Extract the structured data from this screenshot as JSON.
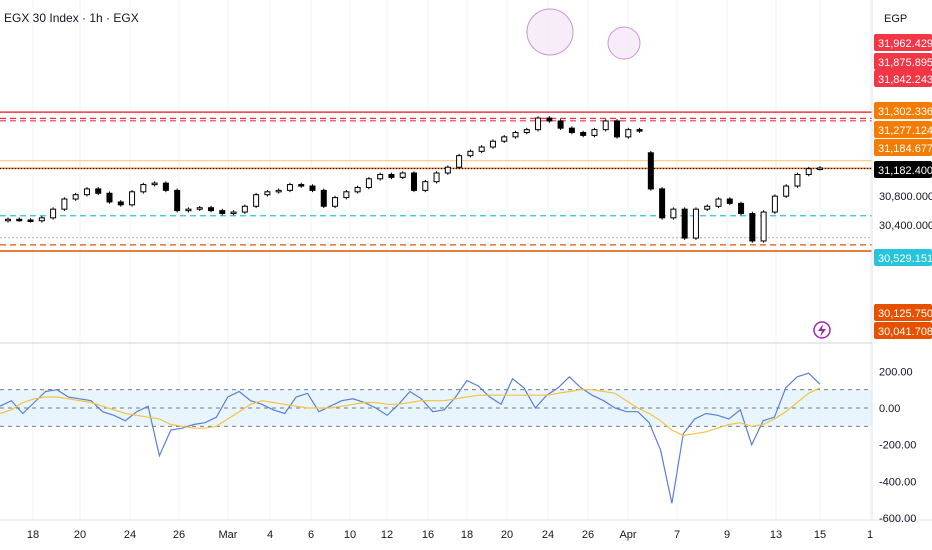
{
  "header": {
    "title": "EGX 30 Index · 1h · EGX"
  },
  "currency": "EGP",
  "chart_data": [
    {
      "type": "candlestick",
      "title": "EGX 30 Index · 1h · EGX",
      "x_ticks": [
        "18",
        "20",
        "24",
        "26",
        "Mar",
        "4",
        "6",
        "10",
        "12",
        "16",
        "18",
        "20",
        "24",
        "26",
        "Apr",
        "7",
        "9",
        "13",
        "15",
        "1"
      ],
      "y_ticks": [
        "30,800.000",
        "30,400.000"
      ],
      "ylim": [
        30041,
        31970
      ],
      "price_labels": [
        {
          "label": "31,962.429",
          "color": "#f23645"
        },
        {
          "label": "31,875.895",
          "color": "#f23645"
        },
        {
          "label": "31,842.243",
          "color": "#f23645"
        },
        {
          "label": "31,302.336",
          "color": "#f57c00"
        },
        {
          "label": "31,277.124",
          "color": "#f57c00"
        },
        {
          "label": "31,184.677",
          "color": "#f57c00"
        },
        {
          "label": "31,182.400",
          "color": "#000000"
        },
        {
          "label": "30,529.151",
          "color": "#26c6da"
        },
        {
          "label": "30,125.750",
          "color": "#e65100"
        },
        {
          "label": "30,041.708",
          "color": "#e65100"
        }
      ],
      "horizontal_levels": [
        {
          "value": 31962.429,
          "color": "#f23645",
          "style": "solid"
        },
        {
          "value": 31875.895,
          "color": "#f23645",
          "style": "dashed"
        },
        {
          "value": 31842.243,
          "color": "#f23645",
          "style": "dashed"
        },
        {
          "value": 31184.677,
          "color": "#f57c00",
          "style": "solid"
        },
        {
          "value": 31182.4,
          "color": "#000000",
          "style": "dotted"
        },
        {
          "value": 30529.151,
          "color": "#26c6da",
          "style": "dashed"
        },
        {
          "value": 30125.75,
          "color": "#e65100",
          "style": "dashed"
        },
        {
          "value": 30041.708,
          "color": "#e65100",
          "style": "solid"
        }
      ],
      "series": [
        {
          "name": "",
          "close_approx": [
            30480,
            30470,
            30460,
            30500,
            30620,
            30760,
            30820,
            30900,
            30840,
            30720,
            30680,
            30860,
            30960,
            30980,
            30880,
            30600,
            30620,
            30640,
            30600,
            30560,
            30580,
            30660,
            30820,
            30860,
            30880,
            30960,
            30940,
            30880,
            30660,
            30780,
            30860,
            30920,
            31040,
            31100,
            31060,
            31120,
            30880,
            31000,
            31120,
            31200,
            31360,
            31420,
            31480,
            31560,
            31620,
            31680,
            31720,
            31880,
            31840,
            31740,
            31680,
            31640,
            31720,
            31840,
            31620,
            31720,
            31700,
            30900,
            30500,
            30620,
            30220,
            30620,
            30660,
            30760,
            30700,
            30560,
            30180,
            30580,
            30800,
            30940,
            31100,
            31180,
            31190
          ]
        }
      ]
    },
    {
      "type": "line",
      "title": "",
      "y_ticks": [
        "200.00",
        "0.00",
        "-200.00",
        "-400.00",
        "-600.00"
      ],
      "ylim": [
        -600,
        200
      ],
      "levels": [
        100,
        0,
        -100
      ],
      "series": [
        {
          "name": "",
          "color": "#5b7fd6",
          "values": [
            10,
            40,
            -30,
            30,
            90,
            100,
            60,
            50,
            40,
            -20,
            -40,
            -70,
            -20,
            10,
            -260,
            -120,
            -110,
            -90,
            -80,
            -50,
            60,
            90,
            40,
            20,
            -10,
            -30,
            60,
            80,
            -20,
            10,
            40,
            50,
            30,
            0,
            -40,
            20,
            90,
            50,
            -20,
            -10,
            60,
            150,
            120,
            60,
            20,
            160,
            110,
            0,
            70,
            110,
            170,
            110,
            70,
            40,
            0,
            -20,
            -20,
            -80,
            -230,
            -520,
            -140,
            -60,
            -30,
            -40,
            -60,
            -10,
            -200,
            -70,
            -50,
            110,
            170,
            190,
            130
          ]
        },
        {
          "name": "",
          "color": "#f5c242",
          "values": [
            -30,
            -10,
            30,
            50,
            60,
            60,
            50,
            40,
            30,
            10,
            -10,
            -30,
            -40,
            -50,
            -60,
            -90,
            -100,
            -110,
            -110,
            -100,
            -60,
            -20,
            20,
            40,
            30,
            20,
            10,
            0,
            0,
            0,
            10,
            20,
            30,
            30,
            20,
            20,
            30,
            40,
            40,
            40,
            50,
            60,
            70,
            70,
            70,
            70,
            70,
            70,
            70,
            80,
            90,
            100,
            100,
            90,
            80,
            40,
            0,
            -30,
            -70,
            -120,
            -150,
            -140,
            -130,
            -110,
            -90,
            -80,
            -100,
            -90,
            -60,
            -20,
            30,
            80,
            110
          ]
        }
      ]
    }
  ]
}
